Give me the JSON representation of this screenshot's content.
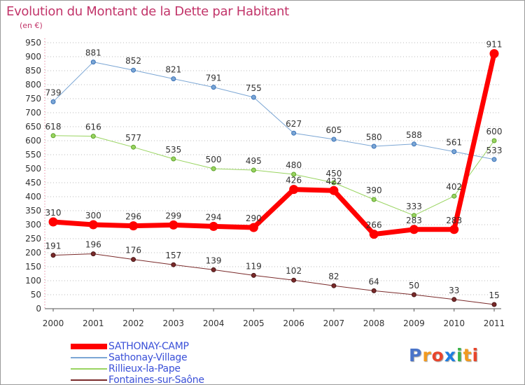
{
  "header": {
    "title": "Evolution du Montant de la Dette par Habitant",
    "subtitle": "(en €)"
  },
  "logo": {
    "text": "Proxiti",
    "letters": [
      "P",
      "r",
      "o",
      "x",
      "i",
      "t",
      "i"
    ],
    "letter_colors": [
      "#4a74c9",
      "#f29a1f",
      "#e8452c",
      "#1f7de0",
      "#3bb34a",
      "#f29a1f",
      "#e8452c"
    ]
  },
  "colors": {
    "title": "#c2356a",
    "legend_text": "#3a50d8",
    "grid": "#b8b8b8",
    "axis": "#555555",
    "tick_text": "#333333"
  },
  "chart_data": {
    "type": "line",
    "title": "Evolution du Montant de la Dette par Habitant",
    "subtitle": "(en €)",
    "xlabel": "",
    "ylabel": "",
    "x": [
      "2000",
      "2001",
      "2002",
      "2003",
      "2004",
      "2005",
      "2006",
      "2007",
      "2008",
      "2009",
      "2010",
      "2011"
    ],
    "ylim": [
      0,
      950
    ],
    "yticks": [
      0,
      50,
      100,
      150,
      200,
      250,
      300,
      350,
      400,
      450,
      500,
      550,
      600,
      650,
      700,
      750,
      800,
      850,
      900,
      950
    ],
    "grid": "horizontal dotted",
    "legend_position": "bottom-left",
    "series": [
      {
        "name": "SATHONAY-CAMP",
        "color": "#ff0000",
        "values": [
          310,
          300,
          296,
          299,
          294,
          290,
          426,
          422,
          266,
          283,
          283,
          911
        ],
        "labels": [
          "310",
          "300",
          "296",
          "299",
          "294",
          "290",
          "426",
          "422",
          "266",
          "283",
          "283",
          "911"
        ]
      },
      {
        "name": "Sathonay-Village",
        "color": "#7ba6d4",
        "values": [
          739,
          881,
          852,
          821,
          791,
          755,
          627,
          605,
          580,
          588,
          561,
          533
        ],
        "labels": [
          "739",
          "881",
          "852",
          "821",
          "791",
          "755",
          "627",
          "605",
          "580",
          "588",
          "561",
          "533"
        ]
      },
      {
        "name": "Rillieux-la-Pape",
        "color": "#99d460",
        "values": [
          618,
          616,
          577,
          535,
          500,
          495,
          480,
          450,
          390,
          333,
          402,
          600
        ],
        "labels": [
          "618",
          "616",
          "577",
          "535",
          "500",
          "495",
          "480",
          "450",
          "390",
          "333",
          "402",
          "600"
        ]
      },
      {
        "name": "Fontaines-sur-Saône",
        "color": "#7a2a2a",
        "values": [
          191,
          196,
          176,
          157,
          139,
          119,
          102,
          82,
          64,
          50,
          33,
          15
        ],
        "labels": [
          "191",
          "196",
          "176",
          "157",
          "139",
          "119",
          "102",
          "82",
          "64",
          "50",
          "33",
          "15"
        ]
      }
    ]
  }
}
